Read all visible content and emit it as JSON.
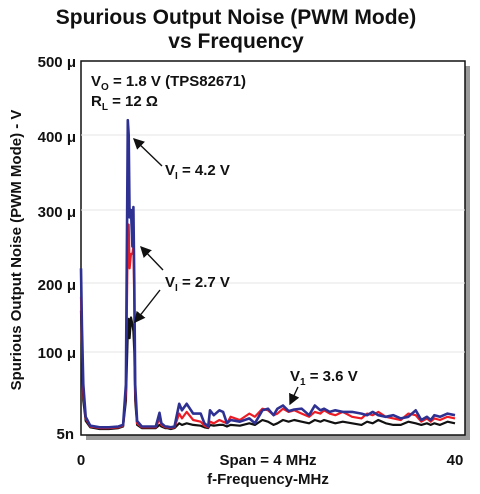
{
  "chart_data": {
    "type": "line",
    "title": "Spurious Output Noise (PWM Mode)",
    "subtitle": "vs Frequency",
    "xlabel": "f-Frequency-MHz",
    "xlabel_note": "Span = 4 MHz",
    "ylabel": "Spurious Output Noise (PWM Mode) - V",
    "xlim": [
      0,
      40
    ],
    "ylim": [
      5e-09,
      0.0005
    ],
    "x_ticks": [
      {
        "value": 0,
        "label": "0"
      },
      {
        "value": 40,
        "label": "40"
      }
    ],
    "y_ticks": [
      {
        "value": 5e-09,
        "label": "5n"
      },
      {
        "value": 0.0001,
        "label": "100 μ"
      },
      {
        "value": 0.0002,
        "label": "200 μ"
      },
      {
        "value": 0.0003,
        "label": "300 μ"
      },
      {
        "value": 0.0004,
        "label": "400 μ"
      },
      {
        "value": 0.0005,
        "label": "500 μ"
      }
    ],
    "conditions": {
      "line1": {
        "main": "V",
        "sub": "O",
        "rest": " = 1.8 V (TPS82671)"
      },
      "line2": {
        "main": "R",
        "sub": "L",
        "rest": " = 12 Ω"
      }
    },
    "annotations": [
      {
        "main": "V",
        "sub": "I",
        "rest": " = 4.2 V",
        "points_to": [
          5.1,
          0.0004
        ]
      },
      {
        "main": "V",
        "sub": "I",
        "rest": " = 2.7 V",
        "points_to": [
          5.1,
          0.000148
        ]
      },
      {
        "main": "V",
        "sub": "1",
        "rest": " = 3.6 V",
        "points_to": [
          20.0,
          3.8e-05
        ]
      }
    ],
    "series": [
      {
        "color": "#2e3192",
        "x": [
          0,
          0.1,
          0.25,
          0.5,
          1,
          2,
          3,
          4,
          4.5,
          4.8,
          5.0,
          5.1,
          5.2,
          5.35,
          5.5,
          5.6,
          5.7,
          5.8,
          6.0,
          6.5,
          7,
          8,
          8.4,
          8.6,
          9,
          9.2,
          9.6,
          10,
          10.5,
          10.8,
          11.3,
          12,
          12.8,
          13.2,
          13.6,
          13.8,
          14.2,
          14.8,
          15.2,
          15.6,
          16,
          17,
          18,
          18.6,
          19.4,
          20,
          20.6,
          21,
          21.6,
          22.2,
          22.8,
          23.6,
          24.4,
          25,
          25.6,
          26,
          26.6,
          27.2,
          28,
          29,
          30,
          30.6,
          31.2,
          31.8,
          32.6,
          33.4,
          34.2,
          35,
          35.8,
          36.4,
          37,
          37.4,
          37.8,
          38.4,
          39.2,
          40
        ],
        "values": [
          0.00022,
          0.00014,
          6e-05,
          2e-05,
          9e-06,
          7e-06,
          7e-06,
          8e-06,
          1e-05,
          6e-05,
          0.00042,
          0.0004,
          0.00029,
          0.0003,
          0.00025,
          0.000304,
          0.0002,
          6e-05,
          1.5e-05,
          8e-06,
          8e-06,
          8e-06,
          2.5e-05,
          1.2e-05,
          8e-06,
          8e-06,
          7e-06,
          8e-06,
          3.6e-05,
          2.8e-05,
          3.6e-05,
          2.4e-05,
          2.4e-05,
          1.2e-05,
          8e-06,
          2.8e-05,
          2.2e-05,
          2.8e-05,
          2.6e-05,
          1.2e-05,
          1.6e-05,
          1.4e-05,
          1.8e-05,
          1.2e-05,
          2.8e-05,
          3e-05,
          2.2e-05,
          3e-05,
          3.4e-05,
          2.7e-05,
          2.9e-05,
          3e-05,
          2.2e-05,
          3.4e-05,
          2.8e-05,
          3e-05,
          2.6e-05,
          2.8e-05,
          2.6e-05,
          2.6e-05,
          2.4e-05,
          2.2e-05,
          2.6e-05,
          2.2e-05,
          2e-05,
          2.2e-05,
          1.8e-05,
          2e-05,
          2.8e-05,
          1.6e-05,
          2e-05,
          1.6e-05,
          2.2e-05,
          2e-05,
          2.4e-05,
          2.2e-05
        ]
      },
      {
        "color": "#ed1c24",
        "x": [
          0,
          0.1,
          0.25,
          0.5,
          1,
          2,
          3,
          4,
          4.5,
          4.8,
          5.0,
          5.1,
          5.2,
          5.35,
          5.5,
          5.6,
          5.7,
          5.8,
          6.0,
          6.5,
          7,
          8,
          8.4,
          8.6,
          9,
          9.2,
          9.6,
          10,
          10.5,
          10.8,
          11.3,
          12,
          12.8,
          13.2,
          13.6,
          13.8,
          14.2,
          14.8,
          15.2,
          15.6,
          16,
          17,
          18,
          18.6,
          19.4,
          20,
          20.6,
          21,
          21.6,
          22.2,
          22.8,
          23.6,
          24.4,
          25,
          25.6,
          26,
          26.6,
          27.2,
          28,
          29,
          30,
          30.6,
          31.2,
          31.8,
          32.6,
          33.4,
          34.2,
          35,
          35.8,
          36.4,
          37,
          37.4,
          37.8,
          38.4,
          39.2,
          40
        ],
        "values": [
          0.00018,
          0.00012,
          5e-05,
          1.8e-05,
          8e-06,
          6e-06,
          6e-06,
          7e-06,
          9e-06,
          5e-05,
          0.00027,
          0.00028,
          0.00022,
          0.00024,
          0.00024,
          0.00025,
          0.00017,
          5e-05,
          1.2e-05,
          7e-06,
          7e-06,
          7e-06,
          1.8e-05,
          1e-05,
          7e-06,
          7e-06,
          6e-06,
          7e-06,
          2.4e-05,
          1.8e-05,
          2.6e-05,
          1.6e-05,
          1.4e-05,
          9e-06,
          7e-06,
          1.4e-05,
          1.2e-05,
          1.6e-05,
          1.4e-05,
          1.2e-05,
          2e-05,
          1.6e-05,
          2.4e-05,
          2e-05,
          3e-05,
          2.8e-05,
          2.2e-05,
          2.4e-05,
          3e-05,
          2.6e-05,
          2.8e-05,
          2.4e-05,
          2e-05,
          2.6e-05,
          2.4e-05,
          2.8e-05,
          2.4e-05,
          2.2e-05,
          2.6e-05,
          2e-05,
          1.8e-05,
          2.4e-05,
          2.2e-05,
          2.6e-05,
          2e-05,
          1.8e-05,
          1.6e-05,
          2.4e-05,
          2.2e-05,
          1.4e-05,
          1.8e-05,
          1.4e-05,
          1.8e-05,
          1.6e-05,
          2e-05,
          1.8e-05
        ]
      },
      {
        "color": "#111111",
        "x": [
          0,
          0.1,
          0.25,
          0.5,
          1,
          2,
          3,
          4,
          4.5,
          4.8,
          5.0,
          5.1,
          5.2,
          5.35,
          5.5,
          5.6,
          5.7,
          5.8,
          6.0,
          6.5,
          7,
          8,
          8.4,
          8.6,
          9,
          9.2,
          9.6,
          10,
          10.5,
          10.8,
          11.3,
          12,
          12.8,
          13.2,
          13.6,
          13.8,
          14.2,
          14.8,
          15.2,
          15.6,
          16,
          17,
          18,
          18.6,
          19.4,
          20,
          20.6,
          21,
          21.6,
          22.2,
          22.8,
          23.6,
          24.4,
          25,
          25.6,
          26,
          26.6,
          27.2,
          28,
          29,
          30,
          30.6,
          31.2,
          31.8,
          32.6,
          33.4,
          34.2,
          35,
          35.8,
          36.4,
          37,
          37.4,
          37.8,
          38.4,
          39.2,
          40
        ],
        "values": [
          0.00016,
          0.0001,
          4e-05,
          1.5e-05,
          7e-06,
          5e-06,
          5e-06,
          6e-06,
          8e-06,
          4e-05,
          0.00013,
          0.000148,
          0.00012,
          0.00015,
          0.00014,
          0.00013,
          0.0001,
          4e-05,
          1e-05,
          6e-06,
          6e-06,
          6e-06,
          1e-05,
          8e-06,
          6e-06,
          6e-06,
          5e-06,
          6e-06,
          1.2e-05,
          1e-05,
          1.2e-05,
          1e-05,
          9e-06,
          7e-06,
          6e-06,
          1e-05,
          9e-06,
          1e-05,
          1e-05,
          8e-06,
          1e-05,
          9e-06,
          1.2e-05,
          1e-05,
          1.6e-05,
          1.4e-05,
          1e-05,
          1.2e-05,
          1.6e-05,
          1.4e-05,
          1.6e-05,
          1.4e-05,
          1.2e-05,
          1.6e-05,
          1.4e-05,
          1.6e-05,
          1.4e-05,
          1.2e-05,
          1.4e-05,
          1.2e-05,
          1e-05,
          1.4e-05,
          1.2e-05,
          1.6e-05,
          1.2e-05,
          1e-05,
          1e-05,
          1.4e-05,
          1.2e-05,
          1e-05,
          1.2e-05,
          1e-05,
          1.2e-05,
          1e-05,
          1.4e-05,
          1.2e-05
        ]
      }
    ]
  }
}
